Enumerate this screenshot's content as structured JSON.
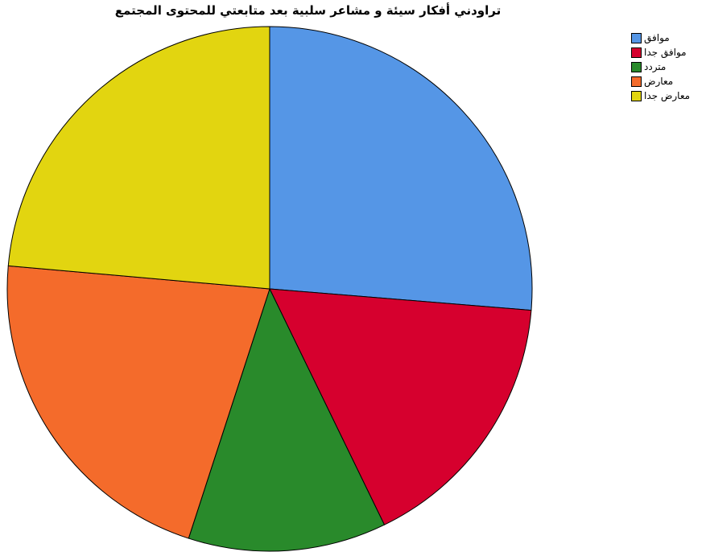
{
  "chart_data": {
    "type": "pie",
    "title": "تراودني أفكار سيئة و مشاعر سلبية بعد متابعتي للمحتوى المجتمع",
    "categories": [
      "موافق",
      "موافق جدا",
      "متردد",
      "معارض",
      "معارض جدا"
    ],
    "values": [
      26.3,
      16.5,
      12.2,
      21.4,
      23.6
    ],
    "unit": "percent",
    "colors": [
      "#5596e6",
      "#d6002e",
      "#298a2b",
      "#f46b2b",
      "#e2d510"
    ],
    "start_angle_deg": 0,
    "direction": "clockwise",
    "legend_position": "top-right",
    "grid": false
  }
}
